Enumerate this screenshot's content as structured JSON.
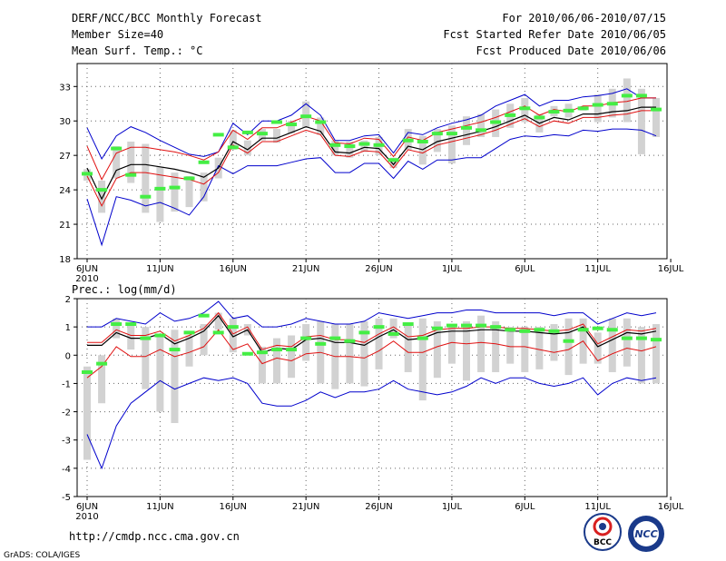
{
  "header": {
    "title": "DERF/NCC/BCC Monthly Forecast",
    "member_size": "Member Size=40",
    "temp_label": "Mean Surf. Temp.: °C",
    "for_range": "For 2010/06/06-2010/07/15",
    "fcst_started": "Fcst Started Refer Date 2010/06/05",
    "fcst_produced": "Fcst Produced Date 2010/06/06"
  },
  "precip_label": "Prec.: log(mm/d)",
  "footer": {
    "url": "http://cmdp.ncc.cma.gov.cn",
    "grads": "GrADS: COLA/IGES",
    "logo_bcc": "BCC",
    "logo_ncc": "NCC"
  },
  "colors": {
    "box": "#d2d2d2",
    "median": "#44ee44",
    "mean": "#000000",
    "inner": "#e01010",
    "outer": "#0000cc",
    "grid": "#666666"
  },
  "x_ticks": [
    "6JUN",
    "11JUN",
    "16JUN",
    "21JUN",
    "26JUN",
    "1JUL",
    "6JUL",
    "11JUL",
    "16JUL"
  ],
  "x_year": "2010",
  "chart_data": [
    {
      "type": "box-line",
      "title": "Mean Surf. Temp.: °C",
      "ylim": [
        18,
        35
      ],
      "yticks": [
        "18",
        "21",
        "24",
        "27",
        "30",
        "33"
      ],
      "days": 40,
      "mean": [
        25.9,
        23.2,
        25.7,
        26.2,
        26.2,
        26.0,
        25.8,
        25.5,
        25.1,
        25.9,
        28.2,
        27.5,
        28.5,
        28.5,
        29.0,
        29.5,
        29.1,
        27.3,
        27.2,
        27.7,
        27.6,
        26.2,
        27.8,
        27.5,
        28.2,
        28.5,
        28.8,
        29.1,
        29.5,
        30.0,
        30.5,
        29.8,
        30.3,
        30.1,
        30.6,
        30.6,
        30.8,
        30.9,
        31.2,
        31.2
      ],
      "upper_inner": [
        27.8,
        24.9,
        27.2,
        27.7,
        27.7,
        27.5,
        27.3,
        27.0,
        26.6,
        27.3,
        29.2,
        28.4,
        29.4,
        29.4,
        29.9,
        30.4,
        30.0,
        28.1,
        28.0,
        28.5,
        28.4,
        26.9,
        28.6,
        28.3,
        29.0,
        29.3,
        29.6,
        29.9,
        30.3,
        30.8,
        31.3,
        30.5,
        31.0,
        30.8,
        31.3,
        31.3,
        31.6,
        31.7,
        32.0,
        32.0
      ],
      "lower_inner": [
        25.2,
        22.6,
        25.0,
        25.5,
        25.5,
        25.3,
        25.1,
        24.9,
        24.5,
        25.5,
        27.9,
        27.2,
        28.2,
        28.2,
        28.7,
        29.2,
        28.8,
        27.0,
        26.9,
        27.4,
        27.3,
        25.9,
        27.5,
        27.2,
        27.9,
        28.2,
        28.5,
        28.8,
        29.2,
        29.7,
        30.2,
        29.5,
        30.0,
        29.8,
        30.3,
        30.3,
        30.5,
        30.6,
        30.9,
        30.9
      ],
      "upper_outer": [
        29.4,
        26.7,
        28.7,
        29.5,
        29.0,
        28.3,
        27.7,
        27.1,
        26.9,
        27.3,
        29.8,
        28.8,
        30.0,
        30.0,
        30.5,
        31.5,
        30.5,
        28.3,
        28.3,
        28.7,
        28.8,
        27.2,
        29.0,
        28.8,
        29.4,
        29.8,
        30.1,
        30.5,
        31.3,
        31.8,
        32.3,
        31.3,
        31.8,
        31.8,
        32.1,
        32.2,
        32.4,
        32.8,
        32.0,
        32.0
      ],
      "lower_outer": [
        23.2,
        19.2,
        23.4,
        23.1,
        22.6,
        22.9,
        22.4,
        21.8,
        23.4,
        26.1,
        25.4,
        26.1,
        26.1,
        26.1,
        26.4,
        26.7,
        26.8,
        25.5,
        25.5,
        26.3,
        26.3,
        25.0,
        26.5,
        25.8,
        26.6,
        26.6,
        26.8,
        26.8,
        27.6,
        28.4,
        28.7,
        28.6,
        28.8,
        28.7,
        29.2,
        29.1,
        29.3,
        29.3,
        29.2,
        28.7
      ],
      "box_top": [
        25.8,
        24.8,
        27.8,
        28.2,
        28.0,
        26.0,
        25.5,
        25.2,
        25.5,
        26.8,
        29.2,
        28.3,
        29.3,
        29.3,
        30.0,
        31.7,
        30.3,
        28.3,
        28.2,
        28.3,
        28.6,
        26.8,
        29.3,
        28.7,
        29.3,
        29.6,
        30.4,
        30.6,
        31.0,
        31.5,
        32.0,
        30.6,
        31.3,
        31.5,
        31.3,
        32.3,
        32.8,
        33.7,
        32.8,
        32.0
      ],
      "box_bottom": [
        24.8,
        22.0,
        25.0,
        24.6,
        22.0,
        21.2,
        22.1,
        22.5,
        23.0,
        25.0,
        27.5,
        27.0,
        28.3,
        28.1,
        28.9,
        29.4,
        28.8,
        27.0,
        26.8,
        27.3,
        27.0,
        25.9,
        27.5,
        26.2,
        27.3,
        26.3,
        27.9,
        28.6,
        28.6,
        29.4,
        29.9,
        29.0,
        30.4,
        30.3,
        30.9,
        29.9,
        30.3,
        29.9,
        27.1,
        28.6
      ],
      "median": [
        25.4,
        24.0,
        27.6,
        25.3,
        23.4,
        24.1,
        24.2,
        25.0,
        26.4,
        28.8,
        27.7,
        29.0,
        28.9,
        29.9,
        29.7,
        30.4,
        29.9,
        27.9,
        27.8,
        28.0,
        27.9,
        26.6,
        28.3,
        28.2,
        28.9,
        28.9,
        29.4,
        29.2,
        29.9,
        30.5,
        31.1,
        30.3,
        30.8,
        30.9,
        31.1,
        31.4,
        31.5,
        32.2,
        32.2,
        31.0
      ]
    },
    {
      "type": "box-line",
      "title": "Prec.: log(mm/d)",
      "ylim": [
        -5,
        2
      ],
      "yticks": [
        "-5",
        "-4",
        "-3",
        "-2",
        "-1",
        "0",
        "1",
        "2"
      ],
      "days": 40,
      "mean": [
        0.35,
        0.35,
        0.8,
        0.6,
        0.6,
        0.75,
        0.4,
        0.6,
        0.85,
        1.4,
        0.65,
        0.9,
        0.1,
        0.25,
        0.2,
        0.55,
        0.6,
        0.45,
        0.45,
        0.35,
        0.65,
        0.9,
        0.55,
        0.6,
        0.8,
        0.85,
        0.85,
        0.9,
        0.9,
        0.85,
        0.85,
        0.8,
        0.75,
        0.8,
        1.0,
        0.3,
        0.55,
        0.8,
        0.75,
        0.85
      ],
      "upper_inner": [
        0.45,
        0.45,
        0.9,
        0.7,
        0.7,
        0.85,
        0.5,
        0.7,
        0.95,
        1.5,
        0.75,
        1.0,
        0.2,
        0.35,
        0.3,
        0.65,
        0.7,
        0.55,
        0.55,
        0.45,
        0.75,
        1.0,
        0.65,
        0.7,
        0.9,
        0.95,
        0.95,
        1.0,
        1.0,
        0.95,
        0.95,
        0.9,
        0.85,
        0.9,
        1.1,
        0.4,
        0.65,
        0.9,
        0.85,
        0.95
      ],
      "lower_inner": [
        -0.8,
        -0.4,
        0.3,
        -0.05,
        -0.05,
        0.2,
        -0.05,
        0.1,
        0.3,
        0.9,
        0.2,
        0.4,
        -0.3,
        -0.1,
        -0.2,
        0.05,
        0.1,
        -0.05,
        -0.05,
        -0.1,
        0.15,
        0.5,
        0.1,
        0.1,
        0.3,
        0.45,
        0.4,
        0.45,
        0.4,
        0.3,
        0.3,
        0.2,
        0.1,
        0.2,
        0.5,
        -0.2,
        0.05,
        0.25,
        0.15,
        0.3
      ],
      "upper_outer": [
        1.0,
        1.0,
        1.3,
        1.2,
        1.1,
        1.5,
        1.2,
        1.3,
        1.5,
        1.9,
        1.3,
        1.4,
        1.0,
        1.0,
        1.1,
        1.3,
        1.2,
        1.1,
        1.1,
        1.2,
        1.5,
        1.4,
        1.3,
        1.4,
        1.5,
        1.5,
        1.6,
        1.6,
        1.5,
        1.5,
        1.5,
        1.5,
        1.4,
        1.5,
        1.5,
        1.1,
        1.3,
        1.5,
        1.4,
        1.5
      ],
      "lower_outer": [
        -2.8,
        -4.0,
        -2.5,
        -1.7,
        -1.3,
        -0.9,
        -1.2,
        -1.0,
        -0.8,
        -0.9,
        -0.8,
        -1.0,
        -1.7,
        -1.8,
        -1.8,
        -1.6,
        -1.3,
        -1.5,
        -1.3,
        -1.3,
        -1.2,
        -0.9,
        -1.2,
        -1.3,
        -1.4,
        -1.3,
        -1.1,
        -0.8,
        -1.0,
        -0.8,
        -0.8,
        -1.0,
        -1.1,
        -1.0,
        -0.8,
        -1.4,
        -1.0,
        -0.8,
        -0.9,
        -0.8
      ],
      "box_top": [
        -0.4,
        0.0,
        1.3,
        1.1,
        1.0,
        0.7,
        0.9,
        0.7,
        1.1,
        1.5,
        1.3,
        1.1,
        0.3,
        0.6,
        0.7,
        1.1,
        1.2,
        1.1,
        1.1,
        1.2,
        1.3,
        1.3,
        1.1,
        1.3,
        1.2,
        1.1,
        1.2,
        1.4,
        1.2,
        1.0,
        1.0,
        1.0,
        1.1,
        1.3,
        1.3,
        0.8,
        1.3,
        1.3,
        1.0,
        1.1
      ],
      "box_bottom": [
        -3.7,
        -1.7,
        0.6,
        0.2,
        -1.2,
        -2.0,
        -2.4,
        -0.4,
        0.0,
        0.9,
        0.1,
        0.7,
        -1.0,
        -1.0,
        -0.8,
        -0.2,
        -1.0,
        -1.2,
        -1.0,
        -1.1,
        -0.5,
        0.6,
        -0.6,
        -1.6,
        -0.8,
        -0.3,
        -0.9,
        -0.6,
        -0.6,
        -0.3,
        -0.6,
        -0.5,
        -0.2,
        -0.7,
        -0.3,
        -0.3,
        -0.6,
        -0.4,
        -1.0,
        -1.0
      ],
      "median": [
        -0.6,
        -0.3,
        1.1,
        1.1,
        0.6,
        0.7,
        0.2,
        0.8,
        1.4,
        0.8,
        1.0,
        0.05,
        0.1,
        0.2,
        0.2,
        0.6,
        0.4,
        0.6,
        0.5,
        0.8,
        1.0,
        0.75,
        1.1,
        0.6,
        0.95,
        1.05,
        1.05,
        1.05,
        1.0,
        0.9,
        0.85,
        0.9,
        0.85,
        0.5,
        0.9,
        0.95,
        0.9,
        0.6,
        0.6,
        0.55
      ]
    }
  ]
}
